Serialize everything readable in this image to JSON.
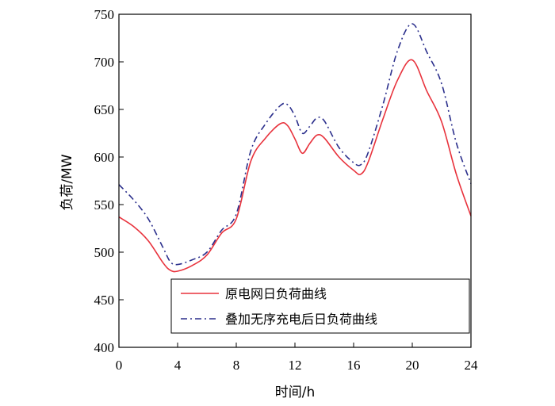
{
  "chart_data": {
    "type": "line",
    "xlabel": "时间/h",
    "ylabel": "负荷/MW",
    "xlim": [
      0,
      24
    ],
    "ylim": [
      400,
      750
    ],
    "xticks": [
      0,
      4,
      8,
      12,
      16,
      20,
      24
    ],
    "yticks": [
      400,
      450,
      500,
      550,
      600,
      650,
      700,
      750
    ],
    "grid": false,
    "legend_position": "bottom-right",
    "series": [
      {
        "name": "原电网日负荷曲线",
        "color": "#e8323c",
        "dash": "solid",
        "x": [
          0,
          1,
          2,
          3,
          3.5,
          4,
          5,
          6,
          7,
          8,
          9,
          10,
          11,
          11.5,
          12,
          12.5,
          13,
          13.5,
          14,
          15,
          16,
          16.5,
          17,
          18,
          19,
          20,
          21,
          22,
          23,
          24
        ],
        "y": [
          537,
          527,
          512,
          489,
          481,
          480,
          486,
          497,
          520,
          535,
          596,
          620,
          635,
          633,
          619,
          604,
          614,
          623,
          620,
          600,
          586,
          582,
          595,
          640,
          681,
          702,
          669,
          637,
          582,
          538
        ]
      },
      {
        "name": "叠加无序充电后日负荷曲线",
        "color": "#2b2f8c",
        "dash": "dashdot",
        "x": [
          0,
          1,
          2,
          3,
          3.5,
          4,
          5,
          6,
          7,
          8,
          9,
          10,
          11,
          11.5,
          12,
          12.5,
          13,
          13.5,
          14,
          15,
          16,
          16.5,
          17,
          18,
          19,
          20,
          21,
          22,
          23,
          24
        ],
        "y": [
          571,
          555,
          535,
          505,
          490,
          487,
          492,
          500,
          523,
          540,
          607,
          635,
          654,
          655,
          643,
          625,
          632,
          641,
          638,
          610,
          594,
          592,
          605,
          655,
          712,
          740,
          710,
          677,
          615,
          572
        ]
      }
    ]
  }
}
